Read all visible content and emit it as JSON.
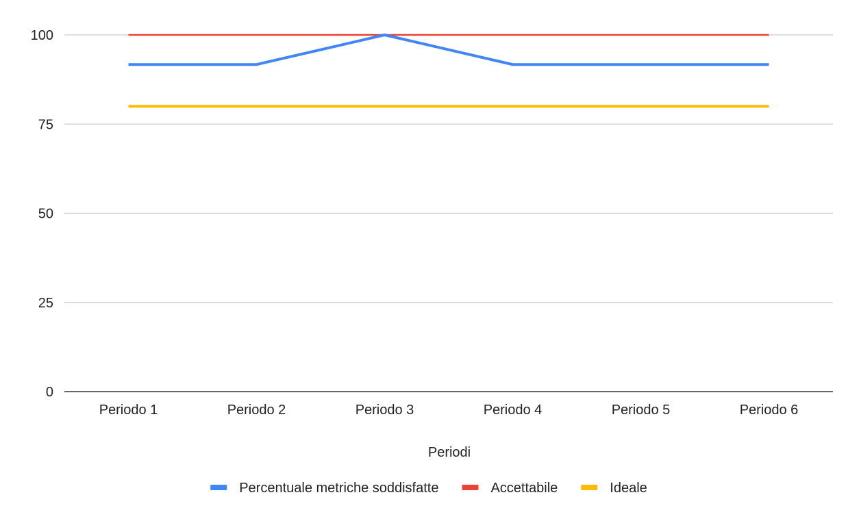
{
  "chart_data": {
    "type": "line",
    "title": "",
    "xlabel": "Periodi",
    "ylabel": "",
    "categories": [
      "Periodo 1",
      "Periodo 2",
      "Periodo 3",
      "Periodo 4",
      "Periodo 5",
      "Periodo 6"
    ],
    "ylim": [
      0,
      100
    ],
    "yticks": [
      0,
      25,
      50,
      75,
      100
    ],
    "grid": true,
    "legend_position": "bottom",
    "series": [
      {
        "name": "Percentuale metriche soddisfatte",
        "color": "#4285F4",
        "values": [
          91.7,
          91.7,
          100,
          91.7,
          91.7,
          91.7
        ]
      },
      {
        "name": "Accettabile",
        "color": "#EA4335",
        "values": [
          100,
          100,
          100,
          100,
          100,
          100
        ]
      },
      {
        "name": "Ideale",
        "color": "#FBBC04",
        "values": [
          80,
          80,
          80,
          80,
          80,
          80
        ]
      }
    ]
  }
}
